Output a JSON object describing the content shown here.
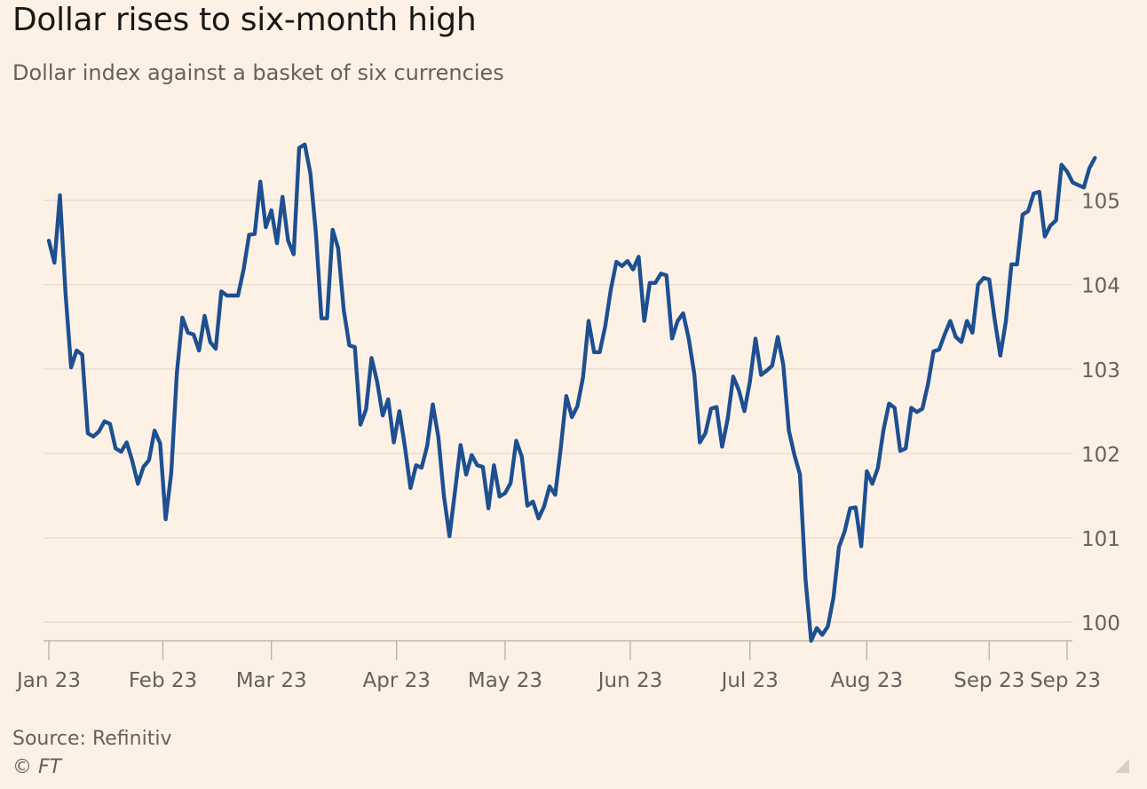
{
  "title": "Dollar rises to six-month high",
  "subtitle": "Dollar index against a basket of six currencies",
  "source": "Source: Refinitiv",
  "copyright": "© FT",
  "colors": {
    "line": "#1d4f91",
    "grid": "#e6d9ce",
    "axis": "#b9aea5",
    "text": "#66605c",
    "background": "#fdf1e6"
  },
  "chart_data": {
    "type": "line",
    "title": "Dollar rises to six-month high",
    "subtitle": "Dollar index against a basket of six currencies",
    "ylabel": "",
    "xlabel": "",
    "ylim": [
      99.78,
      105.9
    ],
    "yticks": [
      100,
      101,
      102,
      103,
      104,
      105
    ],
    "grid": true,
    "y_axis_side": "right",
    "xlim": [
      0,
      183
    ],
    "xticks": [
      {
        "pos": 0,
        "label": "Jan 23"
      },
      {
        "pos": 20.5,
        "label": "Feb 23"
      },
      {
        "pos": 40,
        "label": "Mar 23"
      },
      {
        "pos": 62.5,
        "label": "Apr 23"
      },
      {
        "pos": 82,
        "label": "May 23"
      },
      {
        "pos": 104.5,
        "label": "Jun 23"
      },
      {
        "pos": 126,
        "label": "Jul 23"
      },
      {
        "pos": 147,
        "label": "Aug 23"
      },
      {
        "pos": 169,
        "label": "Sep 23"
      },
      {
        "pos": 183,
        "label": "Sep 23"
      }
    ],
    "series": [
      {
        "name": "Dollar index",
        "values": [
          104.52,
          104.26,
          105.06,
          103.9,
          103.02,
          103.22,
          103.17,
          102.24,
          102.2,
          102.26,
          102.38,
          102.35,
          102.06,
          102.02,
          102.13,
          101.91,
          101.64,
          101.84,
          101.92,
          102.27,
          102.12,
          101.22,
          101.77,
          102.95,
          103.61,
          103.43,
          103.41,
          103.22,
          103.63,
          103.32,
          103.24,
          103.92,
          103.87,
          103.87,
          103.87,
          104.18,
          104.59,
          104.6,
          105.22,
          104.68,
          104.88,
          104.49,
          105.04,
          104.52,
          104.36,
          105.62,
          105.66,
          105.32,
          104.6,
          103.6,
          103.6,
          104.65,
          104.43,
          103.7,
          103.28,
          103.26,
          102.34,
          102.52,
          103.13,
          102.85,
          102.45,
          102.64,
          102.13,
          102.5,
          102.08,
          101.59,
          101.86,
          101.83,
          102.09,
          102.58,
          102.2,
          101.5,
          101.02,
          101.55,
          102.1,
          101.75,
          101.98,
          101.86,
          101.84,
          101.35,
          101.86,
          101.49,
          101.53,
          101.65,
          102.15,
          101.96,
          101.38,
          101.43,
          101.23,
          101.37,
          101.61,
          101.51,
          102.06,
          102.68,
          102.43,
          102.56,
          102.9,
          103.57,
          103.2,
          103.2,
          103.51,
          103.94,
          104.27,
          104.22,
          104.28,
          104.18,
          104.33,
          103.57,
          104.02,
          104.02,
          104.13,
          104.11,
          103.36,
          103.57,
          103.66,
          103.36,
          102.94,
          102.13,
          102.24,
          102.53,
          102.55,
          102.08,
          102.41,
          102.91,
          102.75,
          102.5,
          102.85,
          103.36,
          102.93,
          102.98,
          103.04,
          103.38,
          103.05,
          102.27,
          101.98,
          101.75,
          100.5,
          99.78,
          99.93,
          99.85,
          99.95,
          100.29,
          100.89,
          101.07,
          101.35,
          101.36,
          100.9,
          101.79,
          101.64,
          101.83,
          102.28,
          102.59,
          102.54,
          102.03,
          102.06,
          102.54,
          102.49,
          102.53,
          102.82,
          103.21,
          103.23,
          103.41,
          103.57,
          103.38,
          103.32,
          103.57,
          103.43,
          104.0,
          104.08,
          104.06,
          103.58,
          103.16,
          103.57,
          104.24,
          104.24,
          104.83,
          104.87,
          105.08,
          105.1,
          104.57,
          104.7,
          104.76,
          105.42,
          105.34,
          105.21,
          105.18,
          105.15,
          105.38,
          105.5
        ]
      }
    ]
  }
}
